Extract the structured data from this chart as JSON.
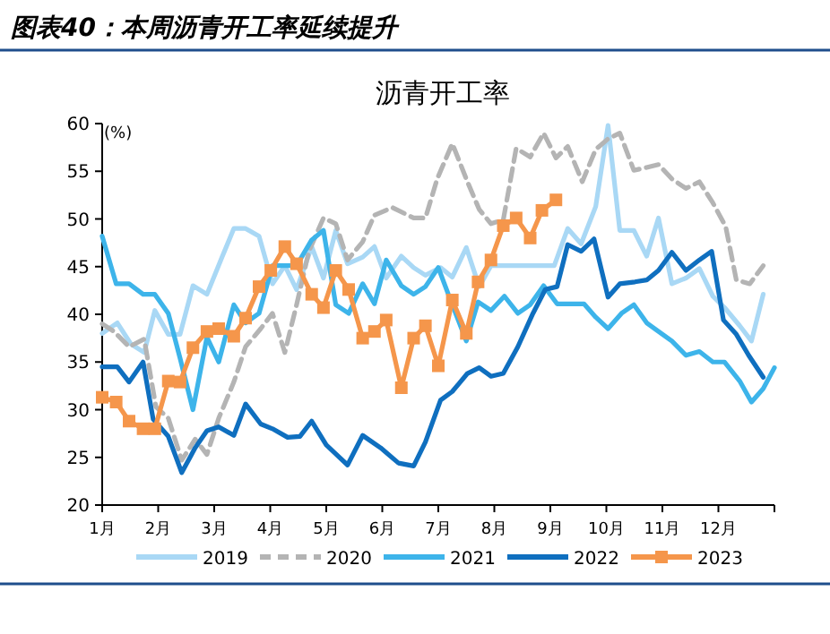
{
  "chart_data": {
    "type": "line",
    "title": "图表40：本周沥青开工率延续提升",
    "subtitle": "沥青开工率",
    "ylabel": "(%)",
    "xlim": [
      1,
      13
    ],
    "xticks": [
      {
        "value": 1,
        "label": "1月"
      },
      {
        "value": 2,
        "label": "2月"
      },
      {
        "value": 3,
        "label": "3月"
      },
      {
        "value": 4,
        "label": "4月"
      },
      {
        "value": 5,
        "label": "5月"
      },
      {
        "value": 6,
        "label": "6月"
      },
      {
        "value": 7,
        "label": "7月"
      },
      {
        "value": 8,
        "label": "8月"
      },
      {
        "value": 9,
        "label": "9月"
      },
      {
        "value": 10,
        "label": "10月"
      },
      {
        "value": 11,
        "label": "11月"
      },
      {
        "value": 12,
        "label": "12月"
      },
      {
        "value": 13,
        "label": null
      }
    ],
    "ylim": [
      20,
      60
    ],
    "yticks": [
      20,
      25,
      30,
      35,
      40,
      45,
      50,
      55,
      60
    ],
    "grid": false,
    "legend": "bottom",
    "series": [
      {
        "name": "2019",
        "color": "#a9d8f5",
        "x": [
          1.0,
          1.27,
          1.51,
          1.75,
          1.94,
          2.18,
          2.39,
          2.62,
          2.87,
          3.14,
          3.35,
          3.56,
          3.8,
          4.04,
          4.26,
          4.47,
          4.74,
          4.95,
          5.17,
          5.38,
          5.65,
          5.86,
          6.07,
          6.34,
          6.56,
          6.77,
          7.04,
          7.25,
          7.5,
          7.73,
          7.94,
          8.16,
          8.42,
          8.69,
          9.07,
          9.31,
          9.55,
          9.81,
          10.03,
          10.24,
          10.49,
          10.72,
          10.93,
          11.17,
          11.42,
          11.66,
          11.9,
          12.11,
          12.38,
          12.59,
          12.8
        ],
        "values": [
          38,
          39.1,
          36.9,
          36,
          40.4,
          37.9,
          37.9,
          43,
          42.1,
          46,
          49,
          49,
          48.2,
          43.2,
          45.1,
          42.6,
          47.1,
          43.8,
          48.8,
          45.3,
          46,
          47.1,
          43.8,
          46.1,
          44.9,
          44.1,
          44.9,
          43.9,
          47,
          42.9,
          45.1,
          45.1,
          45.1,
          45.1,
          45.1,
          49,
          47.4,
          51.3,
          59.8,
          48.8,
          48.8,
          46.1,
          50.1,
          43.2,
          43.8,
          44.8,
          41.9,
          40.7,
          38.8,
          37.2,
          42.1
        ]
      },
      {
        "name": "2020",
        "color": "#b4b4b4",
        "line_style": "dashed",
        "x": [
          1.0,
          1.21,
          1.48,
          1.75,
          1.96,
          2.18,
          2.42,
          2.66,
          2.87,
          3.08,
          3.35,
          3.56,
          3.83,
          4.04,
          4.26,
          4.47,
          4.69,
          4.95,
          5.17,
          5.38,
          5.65,
          5.86,
          6.18,
          6.56,
          6.77,
          6.98,
          7.25,
          7.52,
          7.73,
          7.94,
          8.16,
          8.39,
          8.64,
          8.88,
          9.1,
          9.31,
          9.57,
          9.81,
          10.03,
          10.24,
          10.49,
          10.72,
          10.93,
          11.17,
          11.42,
          11.66,
          11.9,
          12.13,
          12.32,
          12.56,
          12.8
        ],
        "values": [
          39,
          38.2,
          36.6,
          37.4,
          30.3,
          29.1,
          24.7,
          26.9,
          25.3,
          29.1,
          32.9,
          36.6,
          38.5,
          40.1,
          36,
          41,
          46.6,
          50.1,
          49.5,
          45.7,
          47.6,
          50.4,
          51.2,
          50.1,
          50.1,
          54.2,
          57.9,
          53.9,
          51,
          49.5,
          49.9,
          57.4,
          56.5,
          59,
          56.4,
          57.6,
          53.9,
          57.3,
          58.4,
          59,
          55.1,
          55.4,
          55.7,
          54.2,
          53.2,
          53.9,
          51.7,
          49.2,
          43.6,
          43.2,
          45.1
        ]
      },
      {
        "name": "2021",
        "color": "#3db4ea",
        "x": [
          1.0,
          1.25,
          1.48,
          1.73,
          1.94,
          2.18,
          2.39,
          2.62,
          2.87,
          3.08,
          3.35,
          3.56,
          3.8,
          4.04,
          4.26,
          4.47,
          4.74,
          4.95,
          5.17,
          5.4,
          5.65,
          5.86,
          6.07,
          6.34,
          6.56,
          6.77,
          7.0,
          7.25,
          7.5,
          7.71,
          7.94,
          8.18,
          8.42,
          8.64,
          8.88,
          9.12,
          9.39,
          9.6,
          9.81,
          10.03,
          10.27,
          10.49,
          10.72,
          10.93,
          11.17,
          11.42,
          11.66,
          11.9,
          12.11,
          12.38,
          12.59,
          12.8,
          13.0
        ],
        "values": [
          48.2,
          43.2,
          43.2,
          42.1,
          42.1,
          40.1,
          35.4,
          30,
          37.6,
          35,
          41,
          39.1,
          40.1,
          45.1,
          45.1,
          45.1,
          47.8,
          48.8,
          41,
          40.1,
          43.2,
          41.1,
          45.7,
          43,
          42.1,
          42.9,
          44.9,
          41,
          37.2,
          41.3,
          40.4,
          41.9,
          40.1,
          41,
          43,
          41.1,
          41.1,
          41.1,
          39.7,
          38.5,
          40.1,
          41,
          39.1,
          38.2,
          37.2,
          35.7,
          36.1,
          35,
          35,
          33,
          30.8,
          32.2,
          34.4
        ]
      },
      {
        "name": "2022",
        "color": "#0f6fbf",
        "x": [
          1.0,
          1.27,
          1.48,
          1.73,
          1.91,
          2.18,
          2.42,
          2.66,
          2.87,
          3.08,
          3.35,
          3.56,
          3.83,
          4.04,
          4.31,
          4.53,
          4.74,
          5.0,
          5.38,
          5.65,
          5.97,
          6.29,
          6.56,
          6.77,
          7.04,
          7.25,
          7.52,
          7.73,
          7.94,
          8.16,
          8.42,
          8.69,
          8.91,
          9.12,
          9.31,
          9.55,
          9.78,
          10.03,
          10.24,
          10.51,
          10.72,
          10.93,
          11.17,
          11.42,
          11.66,
          11.88,
          12.09,
          12.32,
          12.54,
          12.8
        ],
        "values": [
          34.5,
          34.5,
          32.9,
          35,
          29,
          27.2,
          23.4,
          26,
          27.8,
          28.2,
          27.3,
          30.6,
          28.5,
          28,
          27.1,
          27.2,
          28.8,
          26.3,
          24.2,
          27.3,
          26,
          24.4,
          24.1,
          26.6,
          31,
          31.9,
          33.8,
          34.4,
          33.5,
          33.8,
          36.6,
          40.1,
          42.6,
          42.9,
          47.3,
          46.6,
          47.9,
          41.8,
          43.2,
          43.4,
          43.6,
          44.6,
          46.5,
          44.6,
          45.7,
          46.6,
          39.4,
          37.9,
          35.7,
          33.4
        ]
      },
      {
        "name": "2023",
        "color": "#f5964b",
        "marker": "square",
        "x": [
          1.0,
          1.25,
          1.48,
          1.73,
          1.94,
          2.18,
          2.39,
          2.62,
          2.87,
          3.08,
          3.35,
          3.56,
          3.8,
          4.01,
          4.26,
          4.47,
          4.74,
          4.95,
          5.17,
          5.4,
          5.65,
          5.86,
          6.07,
          6.34,
          6.56,
          6.77,
          7.0,
          7.25,
          7.5,
          7.71,
          7.94,
          8.16,
          8.39,
          8.64,
          8.85,
          9.1
        ],
        "values": [
          31.3,
          30.8,
          28.8,
          28,
          28,
          33,
          32.9,
          36.5,
          38.2,
          38.5,
          37.7,
          39.6,
          42.9,
          44.6,
          47.1,
          45.3,
          42.1,
          40.7,
          44.6,
          42.6,
          37.5,
          38.2,
          39.4,
          32.3,
          37.5,
          38.8,
          34.6,
          41.5,
          38,
          43.4,
          45.7,
          49.3,
          50.1,
          48,
          50.9,
          52
        ]
      }
    ]
  }
}
